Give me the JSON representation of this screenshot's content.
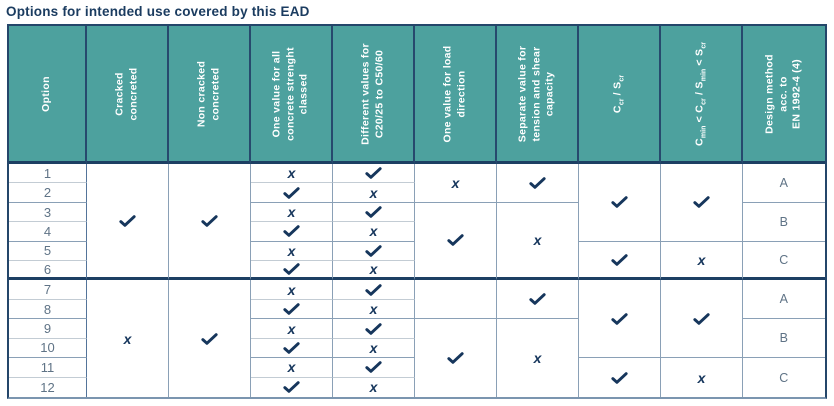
{
  "title": "Options for intended use covered by this EAD",
  "colors": {
    "header_teal": "#4da19e",
    "navy": "#1d3f63",
    "mark_navy": "#16365c",
    "muted_gray_blue": "#5f7386",
    "grid_blue": "#8aa0b6",
    "grid_gray": "#c3ccd4"
  },
  "header": {
    "columns": [
      {
        "id": "option",
        "label": "Option"
      },
      {
        "id": "cracked-concreted",
        "label": "Cracked\nconcreted"
      },
      {
        "id": "non-cracked-concreted",
        "label": "Non cracked\nconcreted"
      },
      {
        "id": "one-value-all-concrete-classes",
        "label": "One value for all\nconcrete strenght\nclassed"
      },
      {
        "id": "different-values-c20-c50",
        "label": "Different values for\nC20/25 to C50/60"
      },
      {
        "id": "one-value-load-direction",
        "label": "One value for load\ndirection"
      },
      {
        "id": "separate-tension-shear",
        "label": "Separate value for\ntension and shear\ncapacity"
      },
      {
        "id": "ccr-scr",
        "tokens": [
          {
            "t": "C"
          },
          {
            "t": "cr",
            "sub": true
          },
          {
            "t": " / S"
          },
          {
            "t": "cr",
            "sub": true
          }
        ]
      },
      {
        "id": "cmin-ccr-smin-scr",
        "tokens": [
          {
            "t": "C"
          },
          {
            "t": "min",
            "sub": true
          },
          {
            "t": " < C"
          },
          {
            "t": "cr",
            "sub": true
          },
          {
            "t": " / S"
          },
          {
            "t": "min",
            "sub": true
          },
          {
            "t": " < S"
          },
          {
            "t": "cr",
            "sub": true
          }
        ]
      },
      {
        "id": "design-method",
        "label": "Design method\nacc. to\nEN 1992-4 (4)"
      }
    ]
  },
  "body": {
    "marks": {
      "check_icon": "check-icon",
      "x_char": "x"
    },
    "cells": [
      {
        "c": 0,
        "r": 1,
        "s": 1,
        "t": "num",
        "v": "1"
      },
      {
        "c": 0,
        "r": 2,
        "s": 1,
        "t": "num",
        "v": "2"
      },
      {
        "c": 0,
        "r": 3,
        "s": 1,
        "t": "num",
        "v": "3"
      },
      {
        "c": 0,
        "r": 4,
        "s": 1,
        "t": "num",
        "v": "4"
      },
      {
        "c": 0,
        "r": 5,
        "s": 1,
        "t": "num",
        "v": "5"
      },
      {
        "c": 0,
        "r": 6,
        "s": 1,
        "t": "num",
        "v": "6"
      },
      {
        "c": 0,
        "r": 7,
        "s": 1,
        "t": "num",
        "v": "7"
      },
      {
        "c": 0,
        "r": 8,
        "s": 1,
        "t": "num",
        "v": "8"
      },
      {
        "c": 0,
        "r": 9,
        "s": 1,
        "t": "num",
        "v": "9"
      },
      {
        "c": 0,
        "r": 10,
        "s": 1,
        "t": "num",
        "v": "10"
      },
      {
        "c": 0,
        "r": 11,
        "s": 1,
        "t": "num",
        "v": "11"
      },
      {
        "c": 0,
        "r": 12,
        "s": 1,
        "t": "num",
        "v": "12"
      },
      {
        "c": 1,
        "r": 1,
        "s": 6,
        "t": "check"
      },
      {
        "c": 1,
        "r": 7,
        "s": 6,
        "t": "x"
      },
      {
        "c": 2,
        "r": 1,
        "s": 6,
        "t": "check"
      },
      {
        "c": 2,
        "r": 7,
        "s": 6,
        "t": "check"
      },
      {
        "c": 3,
        "r": 1,
        "s": 1,
        "t": "x"
      },
      {
        "c": 3,
        "r": 2,
        "s": 1,
        "t": "check"
      },
      {
        "c": 3,
        "r": 3,
        "s": 1,
        "t": "x"
      },
      {
        "c": 3,
        "r": 4,
        "s": 1,
        "t": "check"
      },
      {
        "c": 3,
        "r": 5,
        "s": 1,
        "t": "x"
      },
      {
        "c": 3,
        "r": 6,
        "s": 1,
        "t": "check"
      },
      {
        "c": 3,
        "r": 7,
        "s": 1,
        "t": "x"
      },
      {
        "c": 3,
        "r": 8,
        "s": 1,
        "t": "check"
      },
      {
        "c": 3,
        "r": 9,
        "s": 1,
        "t": "x"
      },
      {
        "c": 3,
        "r": 10,
        "s": 1,
        "t": "check"
      },
      {
        "c": 3,
        "r": 11,
        "s": 1,
        "t": "x"
      },
      {
        "c": 3,
        "r": 12,
        "s": 1,
        "t": "check"
      },
      {
        "c": 4,
        "r": 1,
        "s": 1,
        "t": "check"
      },
      {
        "c": 4,
        "r": 2,
        "s": 1,
        "t": "x"
      },
      {
        "c": 4,
        "r": 3,
        "s": 1,
        "t": "check"
      },
      {
        "c": 4,
        "r": 4,
        "s": 1,
        "t": "x"
      },
      {
        "c": 4,
        "r": 5,
        "s": 1,
        "t": "check"
      },
      {
        "c": 4,
        "r": 6,
        "s": 1,
        "t": "x"
      },
      {
        "c": 4,
        "r": 7,
        "s": 1,
        "t": "check"
      },
      {
        "c": 4,
        "r": 8,
        "s": 1,
        "t": "x"
      },
      {
        "c": 4,
        "r": 9,
        "s": 1,
        "t": "check"
      },
      {
        "c": 4,
        "r": 10,
        "s": 1,
        "t": "x"
      },
      {
        "c": 4,
        "r": 11,
        "s": 1,
        "t": "check"
      },
      {
        "c": 4,
        "r": 12,
        "s": 1,
        "t": "x"
      },
      {
        "c": 5,
        "r": 1,
        "s": 2,
        "t": "x"
      },
      {
        "c": 5,
        "r": 3,
        "s": 4,
        "t": "check"
      },
      {
        "c": 5,
        "r": 7,
        "s": 2,
        "t": "empty"
      },
      {
        "c": 5,
        "r": 9,
        "s": 4,
        "t": "check"
      },
      {
        "c": 6,
        "r": 1,
        "s": 2,
        "t": "check"
      },
      {
        "c": 6,
        "r": 3,
        "s": 4,
        "t": "x"
      },
      {
        "c": 6,
        "r": 7,
        "s": 2,
        "t": "check"
      },
      {
        "c": 6,
        "r": 9,
        "s": 4,
        "t": "x"
      },
      {
        "c": 7,
        "r": 1,
        "s": 4,
        "t": "check"
      },
      {
        "c": 7,
        "r": 5,
        "s": 2,
        "t": "check"
      },
      {
        "c": 7,
        "r": 7,
        "s": 4,
        "t": "check"
      },
      {
        "c": 7,
        "r": 11,
        "s": 2,
        "t": "check"
      },
      {
        "c": 8,
        "r": 1,
        "s": 4,
        "t": "check"
      },
      {
        "c": 8,
        "r": 5,
        "s": 2,
        "t": "x"
      },
      {
        "c": 8,
        "r": 7,
        "s": 4,
        "t": "check"
      },
      {
        "c": 8,
        "r": 11,
        "s": 2,
        "t": "x"
      },
      {
        "c": 9,
        "r": 1,
        "s": 2,
        "t": "letter",
        "v": "A"
      },
      {
        "c": 9,
        "r": 3,
        "s": 2,
        "t": "letter",
        "v": "B"
      },
      {
        "c": 9,
        "r": 5,
        "s": 2,
        "t": "letter",
        "v": "C"
      },
      {
        "c": 9,
        "r": 7,
        "s": 2,
        "t": "letter",
        "v": "A"
      },
      {
        "c": 9,
        "r": 9,
        "s": 2,
        "t": "letter",
        "v": "B"
      },
      {
        "c": 9,
        "r": 11,
        "s": 2,
        "t": "letter",
        "v": "C"
      }
    ]
  }
}
